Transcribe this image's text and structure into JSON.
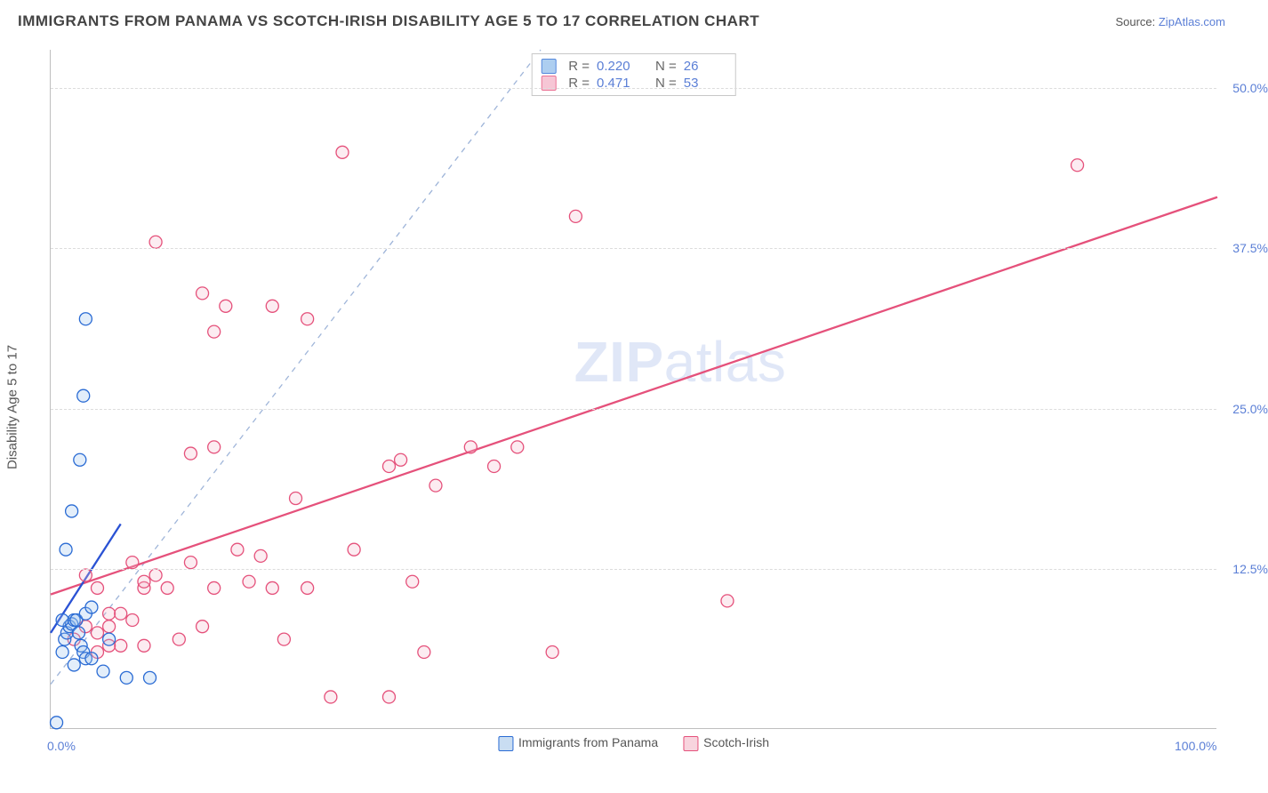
{
  "title": "IMMIGRANTS FROM PANAMA VS SCOTCH-IRISH DISABILITY AGE 5 TO 17 CORRELATION CHART",
  "source_label": "Source: ",
  "source_name": "ZipAtlas.com",
  "ylabel": "Disability Age 5 to 17",
  "watermark_bold": "ZIP",
  "watermark_rest": "atlas",
  "chart": {
    "type": "scatter",
    "xlim": [
      0,
      100
    ],
    "ylim": [
      0,
      53
    ],
    "xticks": [
      {
        "pos": 0,
        "label": "0.0%"
      },
      {
        "pos": 100,
        "label": "100.0%"
      }
    ],
    "yticks": [
      {
        "pos": 12.5,
        "label": "12.5%"
      },
      {
        "pos": 25.0,
        "label": "25.0%"
      },
      {
        "pos": 37.5,
        "label": "37.5%"
      },
      {
        "pos": 50.0,
        "label": "50.0%"
      }
    ],
    "background_color": "#ffffff",
    "grid_color": "#dcdcdc",
    "marker_radius": 7,
    "marker_stroke_width": 1.3,
    "marker_fill_opacity": 0.28,
    "series": [
      {
        "name": "Immigrants from Panama",
        "label": "Immigrants from Panama",
        "marker_fill": "#99c2ed",
        "marker_stroke": "#2a6bd4",
        "line_color": "#2a52d4",
        "line_width": 2.3,
        "dash_line_color": "#9fb5d9",
        "R": "0.220",
        "N": "26",
        "points": [
          [
            0.5,
            0.5
          ],
          [
            1.0,
            6.0
          ],
          [
            1.2,
            7.0
          ],
          [
            1.4,
            7.5
          ],
          [
            1.6,
            8.0
          ],
          [
            1.8,
            8.2
          ],
          [
            2.0,
            8.5
          ],
          [
            2.2,
            8.5
          ],
          [
            2.4,
            7.5
          ],
          [
            2.6,
            6.5
          ],
          [
            2.8,
            6.0
          ],
          [
            3.0,
            5.5
          ],
          [
            3.0,
            9.0
          ],
          [
            3.5,
            9.5
          ],
          [
            1.3,
            14.0
          ],
          [
            1.8,
            17.0
          ],
          [
            2.5,
            21.0
          ],
          [
            2.8,
            26.0
          ],
          [
            3.0,
            32.0
          ],
          [
            1.0,
            8.5
          ],
          [
            4.5,
            4.5
          ],
          [
            5.0,
            7.0
          ],
          [
            3.5,
            5.5
          ],
          [
            2.0,
            5.0
          ],
          [
            6.5,
            4.0
          ],
          [
            8.5,
            4.0
          ]
        ],
        "fit_line": [
          [
            0,
            7.5
          ],
          [
            6,
            16.0
          ]
        ],
        "dash_line": [
          [
            0,
            3.5
          ],
          [
            42,
            53
          ]
        ]
      },
      {
        "name": "Scotch-Irish",
        "label": "Scotch-Irish",
        "marker_fill": "#f5b9cb",
        "marker_stroke": "#e5517b",
        "line_color": "#e5517b",
        "line_width": 2.3,
        "R": "0.471",
        "N": "53",
        "points": [
          [
            2,
            7.0
          ],
          [
            3,
            8.0
          ],
          [
            4,
            7.5
          ],
          [
            5,
            8.0
          ],
          [
            5,
            9.0
          ],
          [
            6,
            6.5
          ],
          [
            7,
            8.5
          ],
          [
            8,
            11.0
          ],
          [
            8,
            11.5
          ],
          [
            9,
            12.0
          ],
          [
            7,
            13.0
          ],
          [
            4,
            11.0
          ],
          [
            3,
            12.0
          ],
          [
            11,
            7.0
          ],
          [
            12,
            13.0
          ],
          [
            13,
            8.0
          ],
          [
            14,
            11.0
          ],
          [
            14,
            22.0
          ],
          [
            12,
            21.5
          ],
          [
            16,
            14.0
          ],
          [
            17,
            11.5
          ],
          [
            18,
            13.5
          ],
          [
            19,
            11.0
          ],
          [
            20,
            7.0
          ],
          [
            21,
            18.0
          ],
          [
            22,
            11.0
          ],
          [
            22,
            32.0
          ],
          [
            24,
            2.5
          ],
          [
            26,
            14.0
          ],
          [
            13,
            34.0
          ],
          [
            14,
            31.0
          ],
          [
            9,
            38.0
          ],
          [
            25,
            45.0
          ],
          [
            29,
            2.5
          ],
          [
            29,
            20.5
          ],
          [
            30,
            21.0
          ],
          [
            31,
            11.5
          ],
          [
            32,
            6.0
          ],
          [
            33,
            19.0
          ],
          [
            36,
            22.0
          ],
          [
            38,
            20.5
          ],
          [
            40,
            22.0
          ],
          [
            43,
            6.0
          ],
          [
            45,
            40.0
          ],
          [
            58,
            10.0
          ],
          [
            88,
            44.0
          ],
          [
            4,
            6.0
          ],
          [
            5,
            6.5
          ],
          [
            6,
            9.0
          ],
          [
            8,
            6.5
          ],
          [
            10,
            11.0
          ],
          [
            15,
            33.0
          ],
          [
            19,
            33.0
          ]
        ],
        "fit_line": [
          [
            0,
            10.5
          ],
          [
            100,
            41.5
          ]
        ]
      }
    ]
  },
  "xlegend": [
    {
      "swatch_fill": "#c9ddf2",
      "swatch_stroke": "#2a6bd4",
      "label": "Immigrants from Panama"
    },
    {
      "swatch_fill": "#f8d4de",
      "swatch_stroke": "#e5517b",
      "label": "Scotch-Irish"
    }
  ]
}
